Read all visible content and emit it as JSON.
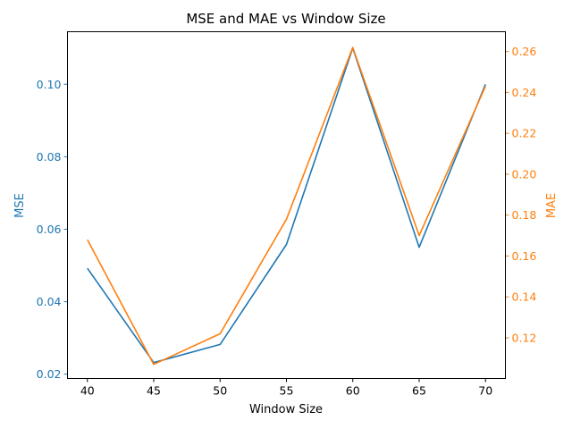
{
  "chart_data": {
    "type": "line",
    "title": "MSE and MAE vs Window Size",
    "xlabel": "Window Size",
    "x": [
      40,
      45,
      50,
      55,
      60,
      65,
      70
    ],
    "xlim": [
      38.5,
      71.5
    ],
    "xticks": [
      "40",
      "45",
      "50",
      "55",
      "60",
      "65",
      "70"
    ],
    "grid": false,
    "series": [
      {
        "name": "MSE",
        "axis": "left",
        "color": "#1f77b4",
        "values": [
          0.0492,
          0.0232,
          0.0282,
          0.0558,
          0.11,
          0.055,
          0.1
        ]
      },
      {
        "name": "MAE",
        "axis": "right",
        "color": "#ff7f0e",
        "values": [
          0.168,
          0.107,
          0.122,
          0.178,
          0.262,
          0.17,
          0.243
        ]
      }
    ],
    "y_left": {
      "label": "MSE",
      "color": "#1f77b4",
      "ylim": [
        0.0188,
        0.1145
      ],
      "ticks": [
        0.02,
        0.04,
        0.06,
        0.08,
        0.1
      ],
      "tick_labels": [
        "0.02",
        "0.04",
        "0.06",
        "0.08",
        "0.10"
      ]
    },
    "y_right": {
      "label": "MAE",
      "color": "#ff7f0e",
      "ylim": [
        0.1001,
        0.2697
      ],
      "ticks": [
        0.12,
        0.14,
        0.16,
        0.18,
        0.2,
        0.22,
        0.24,
        0.26
      ],
      "tick_labels": [
        "0.12",
        "0.14",
        "0.16",
        "0.18",
        "0.20",
        "0.22",
        "0.24",
        "0.26"
      ]
    }
  }
}
